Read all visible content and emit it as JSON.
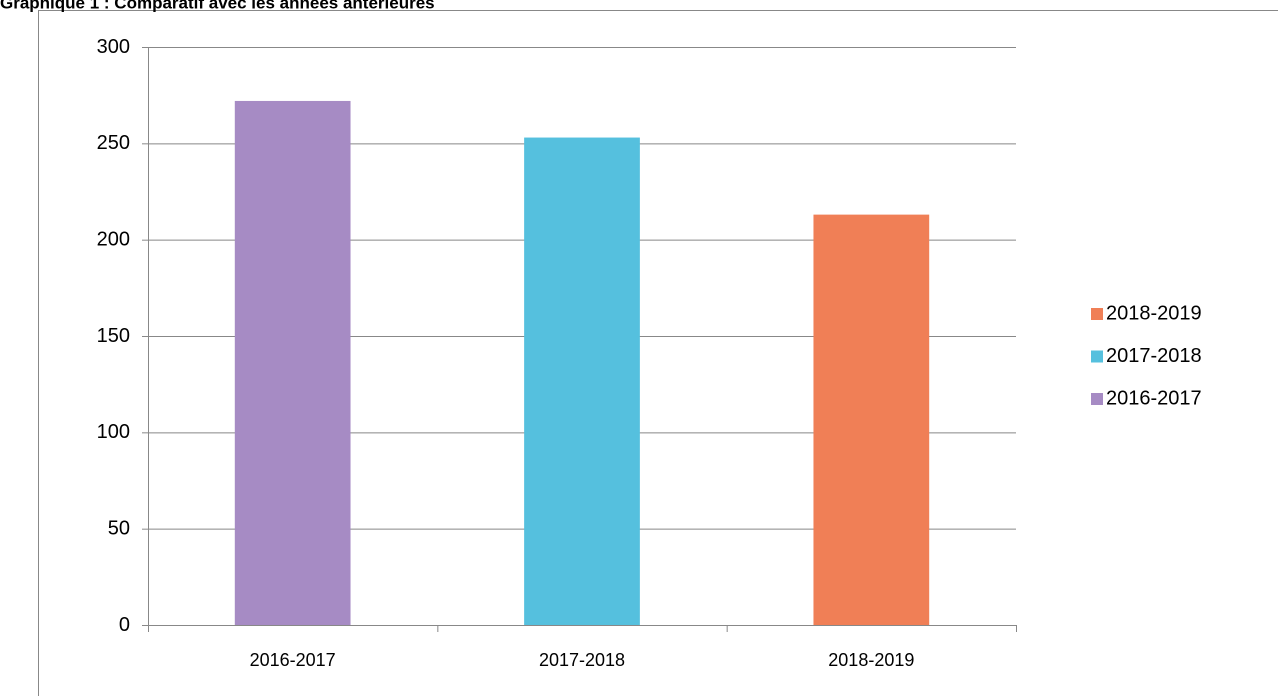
{
  "chart_data": {
    "type": "bar",
    "title": "Graphique 1 : Comparatif avec les années antérieures",
    "categories": [
      "2016-2017",
      "2017-2018",
      "2018-2019"
    ],
    "values": [
      272,
      253,
      213
    ],
    "colors": [
      "#a68bc4",
      "#55c0de",
      "#f07f56"
    ],
    "ylim": [
      0,
      300
    ],
    "yticks": [
      0,
      50,
      100,
      150,
      200,
      250,
      300
    ],
    "grid": true,
    "legend": "right"
  }
}
